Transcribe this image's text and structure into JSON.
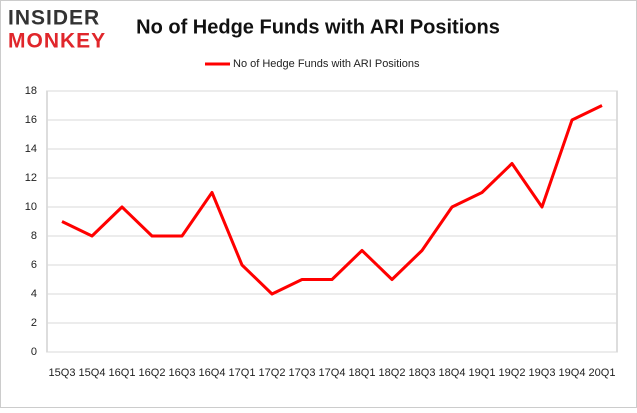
{
  "logo": {
    "line1": "INSIDER",
    "line2": "MONKEY"
  },
  "chart_data": {
    "type": "line",
    "title": "No of Hedge Funds with ARI Positions",
    "categories": [
      "15Q3",
      "15Q4",
      "16Q1",
      "16Q2",
      "16Q3",
      "16Q4",
      "17Q1",
      "17Q2",
      "17Q3",
      "17Q4",
      "18Q1",
      "18Q2",
      "18Q3",
      "18Q4",
      "19Q1",
      "19Q2",
      "19Q3",
      "19Q4",
      "20Q1"
    ],
    "series": [
      {
        "name": "No of Hedge Funds with ARI Positions",
        "color": "#ff0000",
        "values": [
          9,
          8,
          10,
          8,
          8,
          11,
          6,
          4,
          5,
          5,
          7,
          5,
          7,
          10,
          11,
          13,
          10,
          16,
          17
        ]
      }
    ],
    "ylim": [
      0,
      18
    ],
    "yticks": [
      0,
      2,
      4,
      6,
      8,
      10,
      12,
      14,
      16,
      18
    ],
    "grid": true,
    "legend": "top"
  }
}
